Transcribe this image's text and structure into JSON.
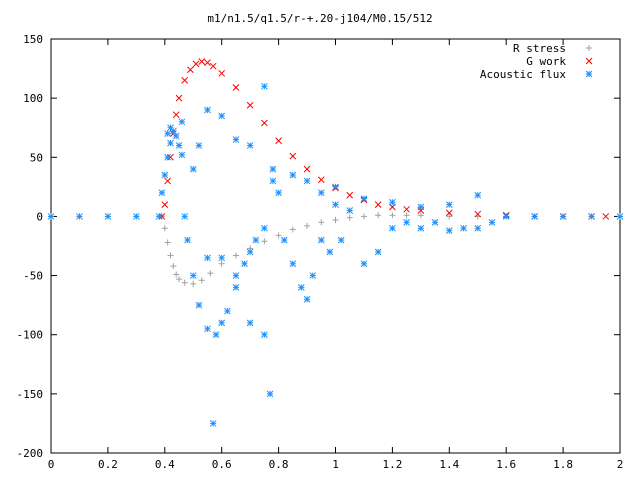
{
  "chart_data": {
    "type": "scatter",
    "title": "m1/n1.5/q1.5/r-+.20-j104/M0.15/512",
    "xlabel": "",
    "ylabel": "",
    "xlim": [
      0,
      2
    ],
    "ylim": [
      -200,
      150
    ],
    "x_ticks": [
      0,
      0.2,
      0.4,
      0.6,
      0.8,
      1,
      1.2,
      1.4,
      1.6,
      1.8,
      2
    ],
    "x_tick_labels": [
      "0",
      "0.2",
      "0.4",
      "0.6",
      "0.8",
      "1",
      "1.2",
      "1.4",
      "1.6",
      "1.8",
      "2"
    ],
    "y_ticks": [
      -200,
      -150,
      -100,
      -50,
      0,
      50,
      100,
      150
    ],
    "y_tick_labels": [
      "-200",
      "-150",
      "-100",
      "-50",
      "0",
      "50",
      "100",
      "150"
    ],
    "grid": false,
    "legend_position": "top-right",
    "series": [
      {
        "name": "R stress",
        "marker": "plus",
        "color": "#a0a0a0",
        "points": [
          [
            0.0,
            0
          ],
          [
            0.1,
            0
          ],
          [
            0.2,
            0
          ],
          [
            0.3,
            0
          ],
          [
            0.39,
            0
          ],
          [
            0.4,
            -10
          ],
          [
            0.41,
            -22
          ],
          [
            0.42,
            -33
          ],
          [
            0.43,
            -42
          ],
          [
            0.44,
            -49
          ],
          [
            0.45,
            -53
          ],
          [
            0.47,
            -56
          ],
          [
            0.5,
            -57
          ],
          [
            0.53,
            -54
          ],
          [
            0.56,
            -48
          ],
          [
            0.6,
            -40
          ],
          [
            0.65,
            -33
          ],
          [
            0.7,
            -27
          ],
          [
            0.75,
            -21
          ],
          [
            0.8,
            -16
          ],
          [
            0.85,
            -11
          ],
          [
            0.9,
            -8
          ],
          [
            0.95,
            -5
          ],
          [
            1.0,
            -3
          ],
          [
            1.05,
            -1
          ],
          [
            1.1,
            0
          ],
          [
            1.15,
            1
          ],
          [
            1.2,
            1
          ],
          [
            1.25,
            1
          ],
          [
            1.3,
            1
          ],
          [
            1.4,
            0
          ],
          [
            1.5,
            0
          ],
          [
            1.6,
            0
          ],
          [
            1.7,
            0
          ],
          [
            1.8,
            0
          ],
          [
            1.9,
            0
          ],
          [
            2.0,
            0
          ]
        ]
      },
      {
        "name": "G work",
        "marker": "cross",
        "color": "#ff0000",
        "points": [
          [
            0.39,
            0
          ],
          [
            0.4,
            10
          ],
          [
            0.41,
            30
          ],
          [
            0.42,
            50
          ],
          [
            0.43,
            70
          ],
          [
            0.44,
            86
          ],
          [
            0.45,
            100
          ],
          [
            0.47,
            115
          ],
          [
            0.49,
            124
          ],
          [
            0.51,
            129
          ],
          [
            0.53,
            131
          ],
          [
            0.55,
            130
          ],
          [
            0.57,
            127
          ],
          [
            0.6,
            121
          ],
          [
            0.65,
            109
          ],
          [
            0.7,
            94
          ],
          [
            0.75,
            79
          ],
          [
            0.8,
            64
          ],
          [
            0.85,
            51
          ],
          [
            0.9,
            40
          ],
          [
            0.95,
            31
          ],
          [
            1.0,
            24
          ],
          [
            1.05,
            18
          ],
          [
            1.1,
            14
          ],
          [
            1.15,
            10
          ],
          [
            1.2,
            8
          ],
          [
            1.25,
            6
          ],
          [
            1.3,
            5
          ],
          [
            1.4,
            3
          ],
          [
            1.5,
            2
          ],
          [
            1.6,
            1
          ],
          [
            1.7,
            0
          ],
          [
            1.8,
            0
          ],
          [
            1.9,
            0
          ],
          [
            1.95,
            0
          ]
        ]
      },
      {
        "name": "Acoustic flux",
        "marker": "star",
        "color": "#1e90ff",
        "points": [
          [
            0.39,
            20
          ],
          [
            0.4,
            35
          ],
          [
            0.41,
            50
          ],
          [
            0.42,
            62
          ],
          [
            0.43,
            72
          ],
          [
            0.44,
            68
          ],
          [
            0.45,
            60
          ],
          [
            0.46,
            52
          ],
          [
            0.41,
            70
          ],
          [
            0.42,
            75
          ],
          [
            0.46,
            80
          ],
          [
            0.47,
            0
          ],
          [
            0.48,
            -20
          ],
          [
            0.5,
            -50
          ],
          [
            0.52,
            -75
          ],
          [
            0.55,
            -35
          ],
          [
            0.6,
            -35
          ],
          [
            0.65,
            -50
          ],
          [
            0.7,
            -90
          ],
          [
            0.75,
            -100
          ],
          [
            0.77,
            -150
          ],
          [
            0.5,
            40
          ],
          [
            0.52,
            60
          ],
          [
            0.55,
            -95
          ],
          [
            0.58,
            -100
          ],
          [
            0.6,
            -90
          ],
          [
            0.62,
            -80
          ],
          [
            0.65,
            -60
          ],
          [
            0.68,
            -40
          ],
          [
            0.7,
            -30
          ],
          [
            0.72,
            -20
          ],
          [
            0.75,
            -10
          ],
          [
            0.78,
            30
          ],
          [
            0.8,
            20
          ],
          [
            0.82,
            -20
          ],
          [
            0.85,
            -40
          ],
          [
            0.88,
            -60
          ],
          [
            0.9,
            -70
          ],
          [
            0.92,
            -50
          ],
          [
            0.95,
            -20
          ],
          [
            0.98,
            -30
          ],
          [
            1.0,
            10
          ],
          [
            1.02,
            -20
          ],
          [
            1.05,
            5
          ],
          [
            1.1,
            -40
          ],
          [
            1.15,
            -30
          ],
          [
            1.2,
            -10
          ],
          [
            1.25,
            -5
          ],
          [
            1.3,
            -10
          ],
          [
            1.35,
            -5
          ],
          [
            1.4,
            -12
          ],
          [
            1.45,
            -10
          ],
          [
            1.5,
            -10
          ],
          [
            1.55,
            -5
          ],
          [
            1.6,
            0
          ],
          [
            0.57,
            -175
          ],
          [
            0.55,
            90
          ],
          [
            0.6,
            85
          ],
          [
            0.65,
            65
          ],
          [
            0.7,
            60
          ],
          [
            0.75,
            110
          ],
          [
            0.78,
            40
          ],
          [
            0.85,
            35
          ],
          [
            0.9,
            30
          ],
          [
            0.95,
            20
          ],
          [
            1.0,
            25
          ],
          [
            1.1,
            15
          ],
          [
            1.2,
            12
          ],
          [
            1.3,
            8
          ],
          [
            1.4,
            10
          ],
          [
            1.5,
            18
          ],
          [
            0.0,
            0
          ],
          [
            0.1,
            0
          ],
          [
            0.2,
            0
          ],
          [
            0.3,
            0
          ],
          [
            0.38,
            0
          ],
          [
            1.7,
            0
          ],
          [
            1.8,
            0
          ],
          [
            1.9,
            0
          ],
          [
            2.0,
            0
          ]
        ]
      }
    ]
  }
}
